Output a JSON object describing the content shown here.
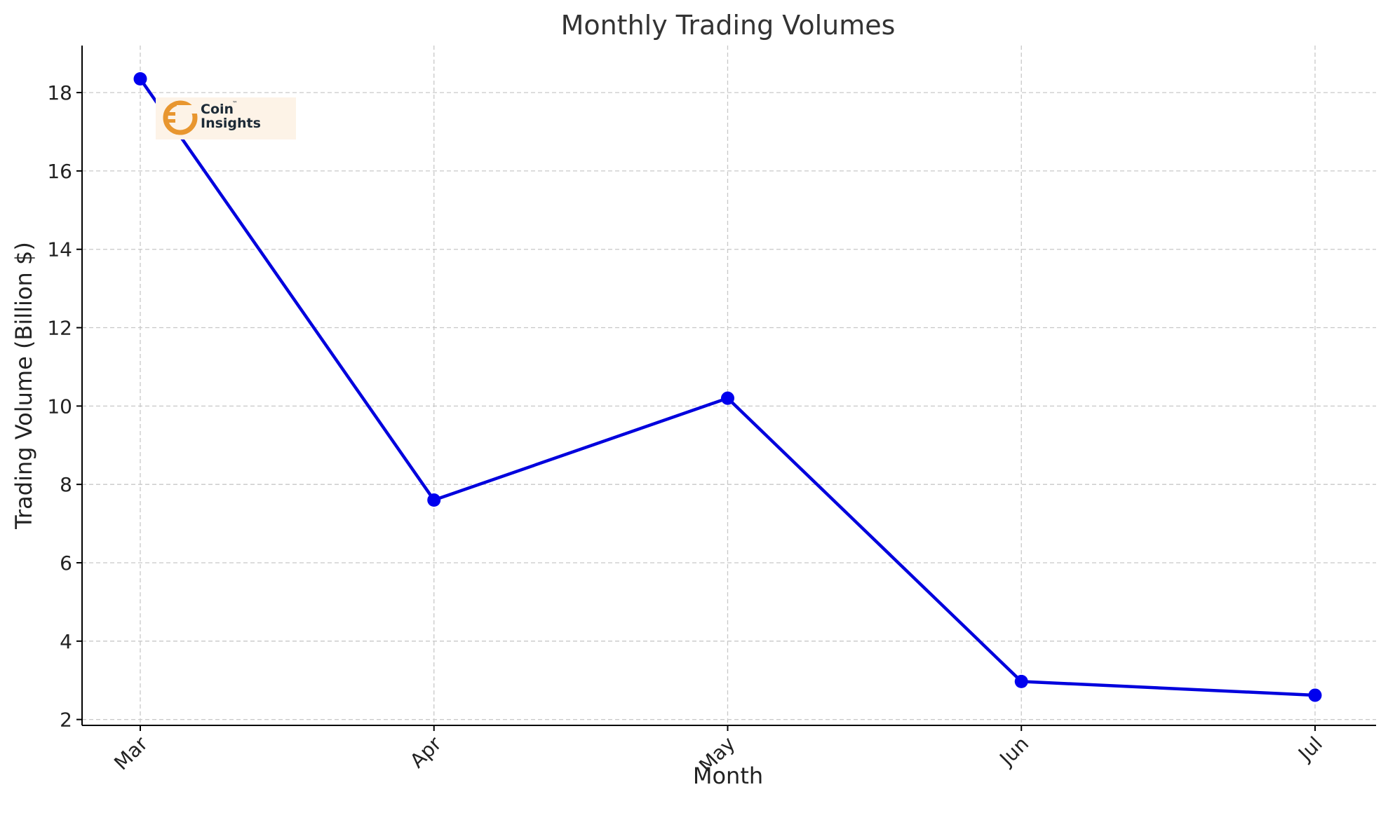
{
  "chart_data": {
    "type": "line",
    "title": "Monthly Trading Volumes",
    "xlabel": "Month",
    "ylabel": "Trading Volume (Billion $)",
    "categories": [
      "Mar",
      "Apr",
      "May",
      "Jun",
      "Jul"
    ],
    "series": [
      {
        "values": [
          18.35,
          7.6,
          10.2,
          2.97,
          2.62
        ]
      }
    ],
    "ylim": [
      1.85,
      19.2
    ],
    "yticks": [
      2,
      4,
      6,
      8,
      10,
      12,
      14,
      16,
      18
    ],
    "grid": true,
    "legend": "none"
  },
  "colors": {
    "line": "#0000dd",
    "marker": "#0000ee",
    "logo_accent": "#e8962f",
    "logo_bg": "#fdf3e7"
  },
  "logo": {
    "line1": "Coin",
    "line2": "Insights",
    "mark": "™",
    "icon": "coin-c-icon"
  }
}
